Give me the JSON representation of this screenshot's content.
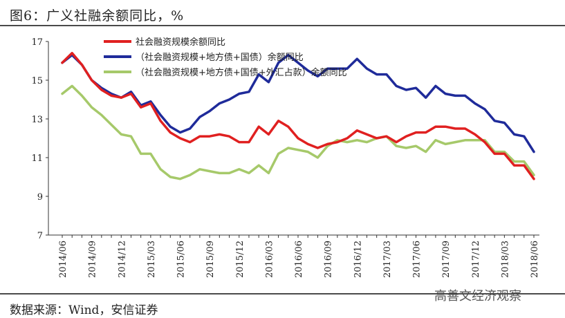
{
  "title": "图6：广义社融余额同比，%",
  "source": "数据来源：Wind，安信证券",
  "watermark": "高善文经济观察",
  "chart_data": {
    "type": "line",
    "ylim": [
      7,
      17
    ],
    "yticks": [
      7,
      9,
      11,
      13,
      15,
      17
    ],
    "grid": false,
    "legend_position": "top-left",
    "categories": [
      "2014/06",
      "2014/07",
      "2014/08",
      "2014/09",
      "2014/10",
      "2014/11",
      "2014/12",
      "2015/01",
      "2015/02",
      "2015/03",
      "2015/04",
      "2015/05",
      "2015/06",
      "2015/07",
      "2015/08",
      "2015/09",
      "2015/10",
      "2015/11",
      "2015/12",
      "2016/01",
      "2016/02",
      "2016/03",
      "2016/04",
      "2016/05",
      "2016/06",
      "2016/07",
      "2016/08",
      "2016/09",
      "2016/10",
      "2016/11",
      "2016/12",
      "2017/01",
      "2017/02",
      "2017/03",
      "2017/04",
      "2017/05",
      "2017/06",
      "2017/07",
      "2017/08",
      "2017/09",
      "2017/10",
      "2017/11",
      "2017/12",
      "2018/01",
      "2018/02",
      "2018/03",
      "2018/04",
      "2018/05",
      "2018/06"
    ],
    "xtick_labels": [
      "2014/06",
      "2014/09",
      "2014/12",
      "2015/03",
      "2015/06",
      "2015/09",
      "2015/12",
      "2016/03",
      "2016/06",
      "2016/09",
      "2016/12",
      "2017/03",
      "2017/06",
      "2017/09",
      "2017/12",
      "2018/03",
      "2018/06"
    ],
    "series": [
      {
        "name": "社会融资规模余额同比",
        "color": "#e02020",
        "values": [
          15.9,
          16.4,
          15.8,
          15.0,
          14.5,
          14.2,
          14.1,
          14.3,
          13.6,
          13.8,
          12.9,
          12.3,
          12.0,
          11.8,
          12.1,
          12.1,
          12.2,
          12.1,
          11.8,
          11.8,
          12.6,
          12.2,
          12.9,
          12.6,
          12.0,
          11.7,
          11.5,
          11.7,
          11.8,
          12.0,
          12.4,
          12.2,
          12.0,
          12.1,
          11.8,
          12.1,
          12.3,
          12.3,
          12.6,
          12.6,
          12.5,
          12.5,
          12.2,
          11.8,
          11.2,
          11.2,
          10.6,
          10.6,
          9.9
        ]
      },
      {
        "name": "（社会融资规模+地方债+国债）余额同比",
        "color": "#1f2b9a",
        "values": [
          15.9,
          16.3,
          15.8,
          15.0,
          14.6,
          14.3,
          14.1,
          14.4,
          13.7,
          13.9,
          13.2,
          12.6,
          12.3,
          12.5,
          13.1,
          13.4,
          13.8,
          14.0,
          14.3,
          14.4,
          15.3,
          14.9,
          15.9,
          16.3,
          15.9,
          15.5,
          15.2,
          15.6,
          15.6,
          15.6,
          16.1,
          15.6,
          15.3,
          15.3,
          14.7,
          14.5,
          14.6,
          14.1,
          14.7,
          14.3,
          14.2,
          14.2,
          13.8,
          13.5,
          12.9,
          12.8,
          12.2,
          12.1,
          11.3
        ]
      },
      {
        "name": "（社会融资规模+地方债+国债+外汇占款）余额同比",
        "color": "#a6c96a",
        "values": [
          14.3,
          14.7,
          14.2,
          13.6,
          13.2,
          12.7,
          12.2,
          12.1,
          11.2,
          11.2,
          10.4,
          10.0,
          9.9,
          10.1,
          10.4,
          10.3,
          10.2,
          10.2,
          10.4,
          10.2,
          10.6,
          10.2,
          11.2,
          11.5,
          11.4,
          11.3,
          11.0,
          11.6,
          11.9,
          11.8,
          11.9,
          11.8,
          12.0,
          12.1,
          11.6,
          11.5,
          11.6,
          11.3,
          11.9,
          11.7,
          11.8,
          11.9,
          11.9,
          11.9,
          11.3,
          11.3,
          10.8,
          10.8,
          10.1
        ]
      }
    ]
  }
}
